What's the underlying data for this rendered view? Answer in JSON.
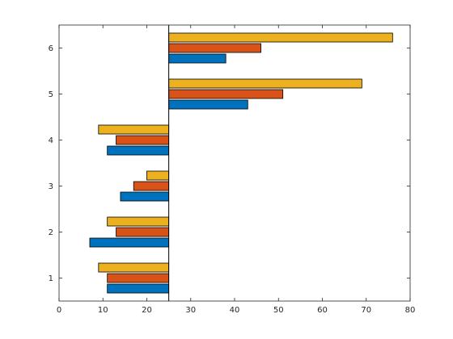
{
  "chart_data": {
    "type": "bar",
    "orientation": "horizontal",
    "base_value": 25,
    "categories": [
      "1",
      "2",
      "3",
      "4",
      "5",
      "6"
    ],
    "series": [
      {
        "color": "#0072BD",
        "values": [
          11,
          7,
          14,
          11,
          43,
          38
        ]
      },
      {
        "color": "#D95319",
        "values": [
          11,
          13,
          17,
          13,
          51,
          46
        ]
      },
      {
        "color": "#EDB120",
        "values": [
          9,
          11,
          20,
          9,
          69,
          76
        ]
      }
    ],
    "x_ticks": [
      "0",
      "10",
      "20",
      "30",
      "40",
      "50",
      "60",
      "70",
      "80"
    ],
    "y_ticks": [
      "1",
      "2",
      "3",
      "4",
      "5",
      "6"
    ],
    "xlim": [
      0,
      80
    ],
    "ylim": [
      0.5,
      6.5
    ],
    "grid": false,
    "title": "",
    "xlabel": "",
    "ylabel": ""
  }
}
